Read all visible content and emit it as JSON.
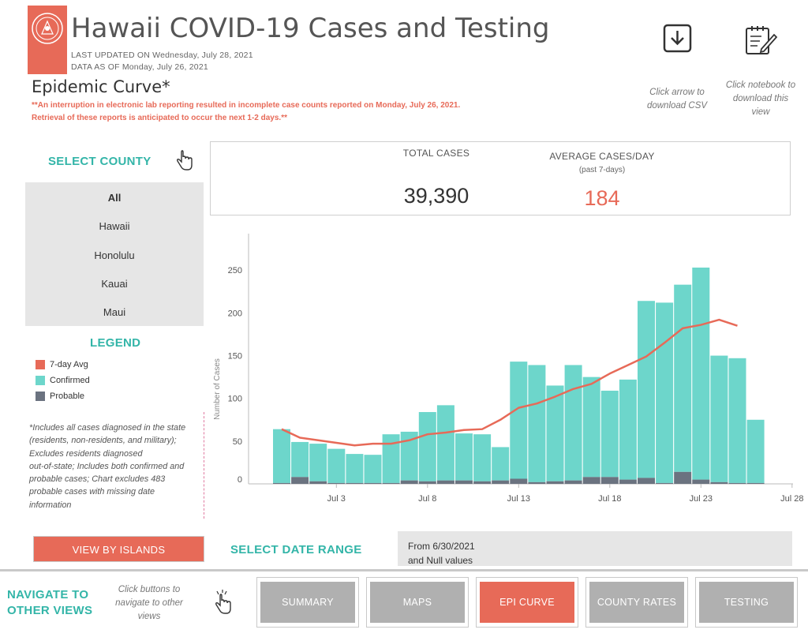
{
  "header": {
    "title": "Hawaii COVID-19 Cases and Testing",
    "last_updated": "LAST UPDATED ON Wednesday, July 28, 2021",
    "data_as_of": "DATA AS OF Monday, July 26, 2021"
  },
  "section_title": "Epidemic Curve*",
  "notice_line1": "**An interruption in electronic lab reporting resulted in incomplete case counts reported on Monday, July 26, 2021.",
  "notice_line2": "Retrieval of these reports is anticipated to occur the next 1-2 days.**",
  "download": {
    "csv_hint": [
      "Click arrow to",
      "download CSV"
    ],
    "view_hint": [
      "Click notebook to",
      "download this",
      "view"
    ]
  },
  "county": {
    "heading": "SELECT COUNTY",
    "options": [
      "All",
      "Hawaii",
      "Honolulu",
      "Kauai",
      "Maui"
    ],
    "selected": "All"
  },
  "kpis": {
    "total_label": "TOTAL CASES",
    "total_value": "39,390",
    "avg_label": "AVERAGE CASES/DAY",
    "avg_sub": "(past 7-days)",
    "avg_value": "184"
  },
  "legend": {
    "heading": "LEGEND",
    "items": [
      {
        "label": "7-day Avg",
        "color": "#e76a58"
      },
      {
        "label": "Confirmed",
        "color": "#6dd6cb"
      },
      {
        "label": "Probable",
        "color": "#6b7380"
      }
    ]
  },
  "footnote": [
    "*Includes all cases diagnosed in the state",
    "(residents, non-residents, and military);",
    "Excludes residents diagnosed",
    "out-of-state; Includes both confirmed and",
    "probable cases; Chart excludes 483",
    "probable cases with missing date",
    "information"
  ],
  "view_by_islands": "VIEW BY ISLANDS",
  "date_range": {
    "heading": "SELECT DATE RANGE",
    "line1": "From 6/30/2021",
    "line2": "and Null values"
  },
  "navigate": {
    "heading": [
      "NAVIGATE TO",
      "OTHER VIEWS"
    ],
    "hint": [
      "Click buttons to",
      "navigate to other",
      "views"
    ],
    "buttons": [
      "SUMMARY",
      "MAPS",
      "EPI CURVE",
      "COUNTY RATES",
      "TESTING"
    ],
    "active": "EPI CURVE"
  },
  "colors": {
    "accent": "#e76a58",
    "teal": "#33b5a8",
    "confirmed": "#6dd6cb",
    "probable": "#6b7380",
    "panel": "#e6e6e6",
    "nav_inactive": "#b0b0b0"
  },
  "chart_data": {
    "type": "bar",
    "ylabel": "Number of Cases",
    "yticks": [
      0,
      50,
      100,
      150,
      200,
      250
    ],
    "ylim": [
      0,
      265
    ],
    "xticks": [
      "Jul 3",
      "Jul 8",
      "Jul 13",
      "Jul 18",
      "Jul 23",
      "Jul 28"
    ],
    "x": [
      "Jun 30",
      "Jul 1",
      "Jul 2",
      "Jul 3",
      "Jul 4",
      "Jul 5",
      "Jul 6",
      "Jul 7",
      "Jul 8",
      "Jul 9",
      "Jul 10",
      "Jul 11",
      "Jul 12",
      "Jul 13",
      "Jul 14",
      "Jul 15",
      "Jul 16",
      "Jul 17",
      "Jul 18",
      "Jul 19",
      "Jul 20",
      "Jul 21",
      "Jul 22",
      "Jul 23",
      "Jul 24",
      "Jul 25",
      "Jul 26",
      "Jul 27",
      "Jul 28"
    ],
    "series": [
      {
        "name": "Confirmed",
        "values": [
          63,
          41,
          44,
          40,
          34,
          33,
          57,
          57,
          81,
          88,
          55,
          55,
          39,
          137,
          137,
          112,
          135,
          117,
          101,
          117,
          207,
          211,
          219,
          248,
          148,
          146,
          74,
          null,
          null
        ]
      },
      {
        "name": "Probable",
        "values": [
          1,
          8,
          3,
          1,
          1,
          1,
          1,
          4,
          3,
          4,
          4,
          3,
          4,
          6,
          2,
          3,
          4,
          8,
          8,
          5,
          7,
          1,
          14,
          5,
          2,
          1,
          1,
          null,
          null
        ]
      },
      {
        "name": "7-day Avg",
        "values": [
          64,
          54,
          51,
          48,
          45,
          47,
          47,
          51,
          58,
          60,
          63,
          64,
          75,
          89,
          94,
          102,
          111,
          117,
          129,
          139,
          149,
          165,
          182,
          186,
          192,
          185,
          null,
          null,
          null
        ]
      }
    ]
  }
}
